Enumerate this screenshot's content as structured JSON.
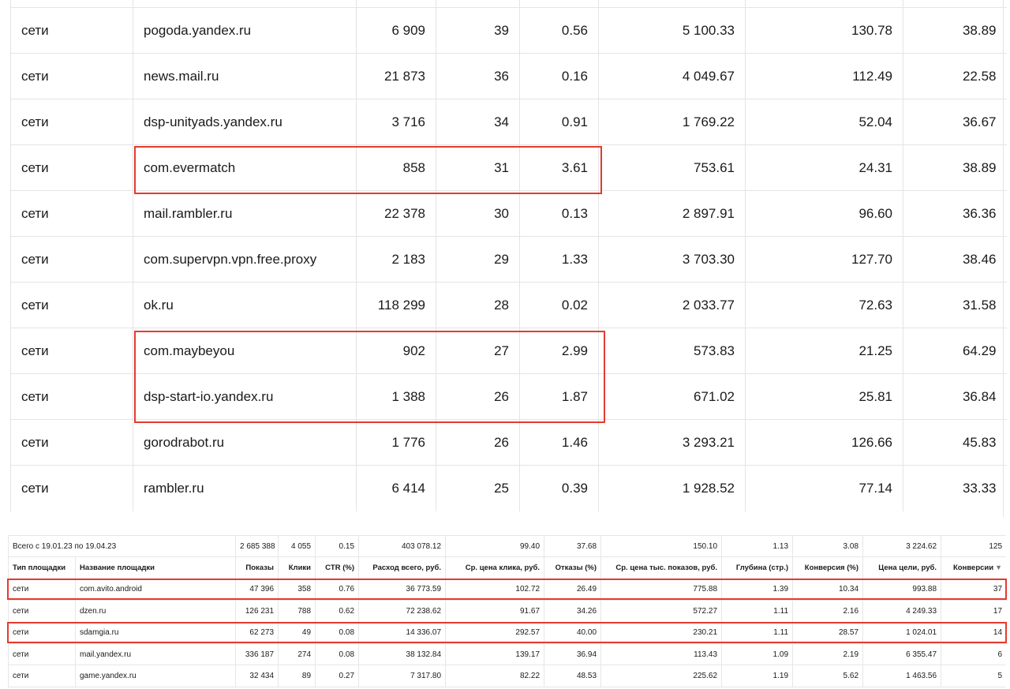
{
  "top_table": {
    "rows": [
      {
        "type": "сети",
        "site": "pogoda.yandex.ru",
        "shows": "6 909",
        "clicks": "39",
        "ctr": "0.56",
        "spend": "5 100.33",
        "cpc": "130.78",
        "bounce": "38.89"
      },
      {
        "type": "сети",
        "site": "news.mail.ru",
        "shows": "21 873",
        "clicks": "36",
        "ctr": "0.16",
        "spend": "4 049.67",
        "cpc": "112.49",
        "bounce": "22.58"
      },
      {
        "type": "сети",
        "site": "dsp-unityads.yandex.ru",
        "shows": "3 716",
        "clicks": "34",
        "ctr": "0.91",
        "spend": "1 769.22",
        "cpc": "52.04",
        "bounce": "36.67"
      },
      {
        "type": "сети",
        "site": "com.evermatch",
        "shows": "858",
        "clicks": "31",
        "ctr": "3.61",
        "spend": "753.61",
        "cpc": "24.31",
        "bounce": "38.89"
      },
      {
        "type": "сети",
        "site": "mail.rambler.ru",
        "shows": "22 378",
        "clicks": "30",
        "ctr": "0.13",
        "spend": "2 897.91",
        "cpc": "96.60",
        "bounce": "36.36"
      },
      {
        "type": "сети",
        "site": "com.supervpn.vpn.free.proxy",
        "shows": "2 183",
        "clicks": "29",
        "ctr": "1.33",
        "spend": "3 703.30",
        "cpc": "127.70",
        "bounce": "38.46"
      },
      {
        "type": "сети",
        "site": "ok.ru",
        "shows": "118 299",
        "clicks": "28",
        "ctr": "0.02",
        "spend": "2 033.77",
        "cpc": "72.63",
        "bounce": "31.58"
      },
      {
        "type": "сети",
        "site": "com.maybeyou",
        "shows": "902",
        "clicks": "27",
        "ctr": "2.99",
        "spend": "573.83",
        "cpc": "21.25",
        "bounce": "64.29"
      },
      {
        "type": "сети",
        "site": "dsp-start-io.yandex.ru",
        "shows": "1 388",
        "clicks": "26",
        "ctr": "1.87",
        "spend": "671.02",
        "cpc": "25.81",
        "bounce": "36.84"
      },
      {
        "type": "сети",
        "site": "gorodrabot.ru",
        "shows": "1 776",
        "clicks": "26",
        "ctr": "1.46",
        "spend": "3 293.21",
        "cpc": "126.66",
        "bounce": "45.83"
      },
      {
        "type": "сети",
        "site": "rambler.ru",
        "shows": "6 414",
        "clicks": "25",
        "ctr": "0.39",
        "spend": "1 928.52",
        "cpc": "77.14",
        "bounce": "33.33"
      }
    ]
  },
  "bottom_table": {
    "totals": {
      "label": "Всего с 19.01.23 по 19.04.23",
      "shows": "2 685 388",
      "clicks": "4 055",
      "ctr": "0.15",
      "spend": "403 078.12",
      "cpc": "99.40",
      "bounce": "37.68",
      "cpm": "150.10",
      "depth": "1.13",
      "conv_rate": "3.08",
      "goal_cost": "3 224.62",
      "conversions": "125"
    },
    "headers": {
      "type": "Тип площадки",
      "site": "Название площадки",
      "shows": "Показы",
      "clicks": "Клики",
      "ctr": "CTR (%)",
      "spend": "Расход всего, руб.",
      "cpc": "Ср. цена клика, руб.",
      "bounce": "Отказы (%)",
      "cpm": "Ср. цена тыс. показов, руб.",
      "depth": "Глубина (стр.)",
      "conv_rate": "Конверсия (%)",
      "goal_cost": "Цена цели, руб.",
      "conversions": "Конверсии",
      "sort_icon": "▼"
    },
    "rows": [
      {
        "type": "сети",
        "site": "com.avito.android",
        "shows": "47 396",
        "clicks": "358",
        "ctr": "0.76",
        "spend": "36 773.59",
        "cpc": "102.72",
        "bounce": "26.49",
        "cpm": "775.88",
        "depth": "1.39",
        "conv_rate": "10.34",
        "goal_cost": "993.88",
        "conversions": "37"
      },
      {
        "type": "сети",
        "site": "dzen.ru",
        "shows": "126 231",
        "clicks": "788",
        "ctr": "0.62",
        "spend": "72 238.62",
        "cpc": "91.67",
        "bounce": "34.26",
        "cpm": "572.27",
        "depth": "1.11",
        "conv_rate": "2.16",
        "goal_cost": "4 249.33",
        "conversions": "17"
      },
      {
        "type": "сети",
        "site": "sdamgia.ru",
        "shows": "62 273",
        "clicks": "49",
        "ctr": "0.08",
        "spend": "14 336.07",
        "cpc": "292.57",
        "bounce": "40.00",
        "cpm": "230.21",
        "depth": "1.11",
        "conv_rate": "28.57",
        "goal_cost": "1 024.01",
        "conversions": "14"
      },
      {
        "type": "сети",
        "site": "mail.yandex.ru",
        "shows": "336 187",
        "clicks": "274",
        "ctr": "0.08",
        "spend": "38 132.84",
        "cpc": "139.17",
        "bounce": "36.94",
        "cpm": "113.43",
        "depth": "1.09",
        "conv_rate": "2.19",
        "goal_cost": "6 355.47",
        "conversions": "6"
      },
      {
        "type": "сети",
        "site": "game.yandex.ru",
        "shows": "32 434",
        "clicks": "89",
        "ctr": "0.27",
        "spend": "7 317.80",
        "cpc": "82.22",
        "bounce": "48.53",
        "cpm": "225.62",
        "depth": "1.19",
        "conv_rate": "5.62",
        "goal_cost": "1 463.56",
        "conversions": "5"
      }
    ]
  },
  "highlight_color": "#e53a2f"
}
